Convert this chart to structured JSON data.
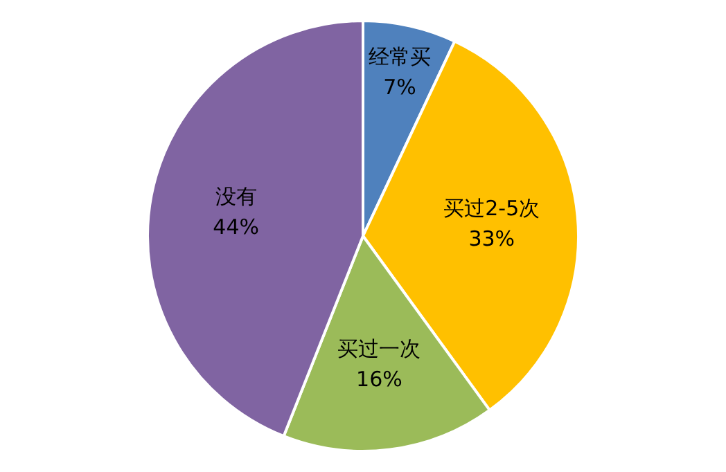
{
  "chart_data": {
    "type": "pie",
    "categories": [
      "经常买",
      "买过2-5次",
      "买过一次",
      "没有"
    ],
    "values": [
      7,
      33,
      16,
      44
    ],
    "colors": [
      "#4f81bd",
      "#ffc000",
      "#9bbb59",
      "#8064a2"
    ],
    "value_labels": [
      "7%",
      "33%",
      "16%",
      "44%"
    ],
    "legend": false
  }
}
